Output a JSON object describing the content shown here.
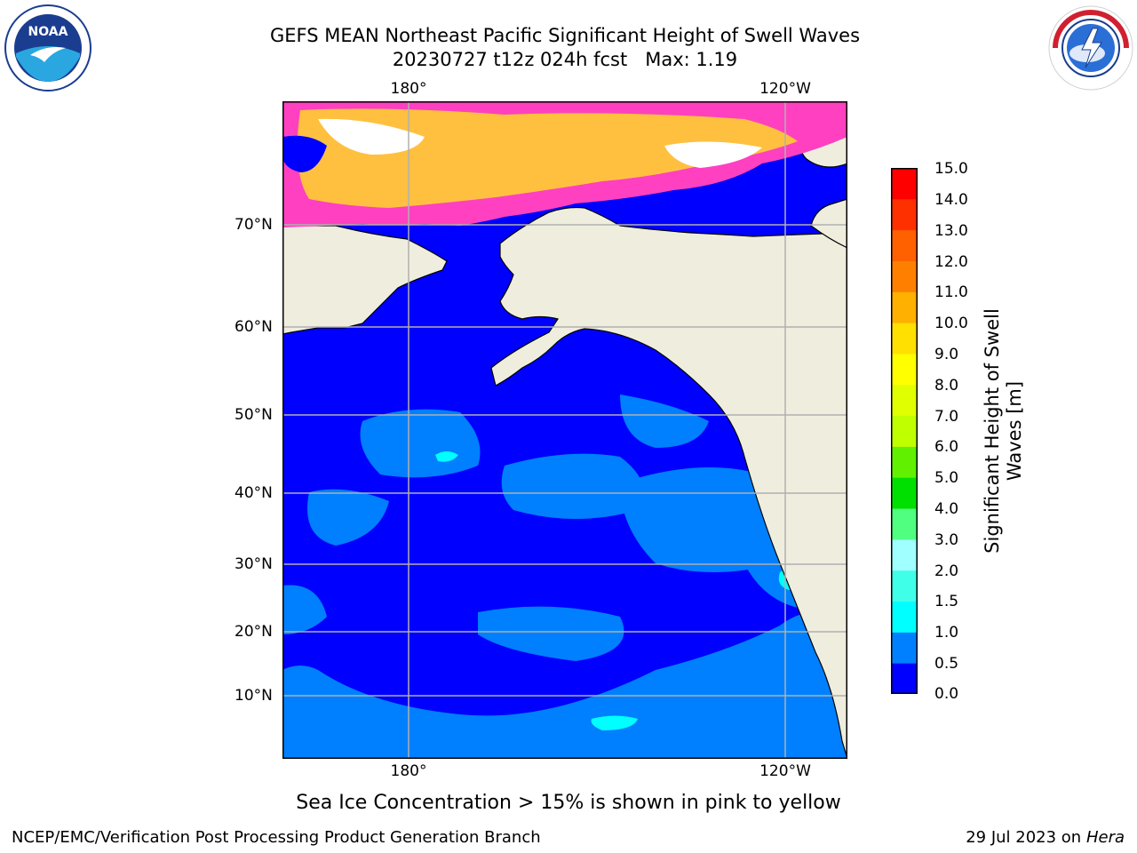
{
  "title": {
    "line1": "GEFS MEAN Northeast Pacific Significant Height of Swell Waves",
    "line2": "20230727 t12z 024h fcst   Max: 1.19"
  },
  "map": {
    "lon_labels_top": [
      "180°",
      "120°W"
    ],
    "lon_labels_bottom": [
      "180°",
      "120°W"
    ],
    "lat_labels": [
      "70°N",
      "60°N",
      "50°N",
      "40°N",
      "30°N",
      "20°N",
      "10°N"
    ],
    "colors": {
      "ocean_low": "#0000ff",
      "ocean_mid": "#0080ff",
      "ocean_high": "#00ffff",
      "land": "#efedde",
      "grid": "#b0b0b0",
      "ice_pink": "#ff40c0",
      "ice_yellow": "#ffc040"
    }
  },
  "colorbar": {
    "label": "Significant Height of Swell Waves [m]",
    "ticks": [
      "15.0",
      "14.0",
      "13.0",
      "12.0",
      "11.0",
      "10.0",
      "9.0",
      "8.0",
      "7.0",
      "6.0",
      "5.0",
      "4.0",
      "3.0",
      "2.0",
      "1.5",
      "1.0",
      "0.5",
      "0.0"
    ],
    "colors": [
      "#0000ff",
      "#0080ff",
      "#00ffff",
      "#40ffe8",
      "#a0ffff",
      "#50ff80",
      "#00e000",
      "#60f000",
      "#c0ff00",
      "#e0ff00",
      "#ffff00",
      "#ffe000",
      "#ffb000",
      "#ff8000",
      "#ff6000",
      "#ff3000",
      "#ff0000"
    ]
  },
  "note": "Sea Ice Concentration > 15% is shown in pink to yellow",
  "footer": {
    "left": "NCEP/EMC/Verification Post Processing Product Generation Branch",
    "right_prefix": "29 Jul 2023 on ",
    "right_host": "Hera"
  }
}
